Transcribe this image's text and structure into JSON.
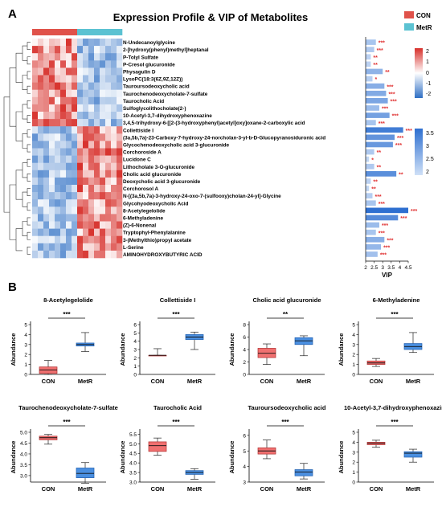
{
  "panel_a": {
    "label": "A",
    "title": "Expression Profile & VIP of Metabolites",
    "legend": {
      "groups": [
        {
          "name": "CON",
          "color": "#e0524a"
        },
        {
          "name": "MetR",
          "color": "#5bc2d2"
        }
      ]
    },
    "color_scale": {
      "ticks": [
        "2",
        "1",
        "0",
        "-1",
        "-2"
      ],
      "colors": [
        "#d7302b",
        "#ffffff",
        "#2e6fc4"
      ]
    },
    "vip_scale": {
      "ticks": [
        "3.5",
        "3",
        "2.5",
        "2"
      ]
    }
  },
  "panel_b": {
    "label": "B"
  },
  "chart_data": [
    {
      "type": "heatmap",
      "title": "Expression Profile & VIP of Metabolites",
      "columns": [
        "CON",
        "CON",
        "CON",
        "CON",
        "CON",
        "CON",
        "CON",
        "CON",
        "MetR",
        "MetR",
        "MetR",
        "MetR",
        "MetR",
        "MetR",
        "MetR",
        "MetR"
      ],
      "rows": [
        "N-Undecanoylglycine",
        "2-[hydroxy(phenyl)methyl]heptanal",
        "P-Tolyl Sulfate",
        "P-Cresol glucuronide",
        "Physagulin D",
        "LysoPC(18:3(6Z,9Z,12Z))",
        "Tauroursodeoxycholic acid",
        "Taurochenodeoxycholate-7-sulfate",
        "Taurocholic Acid",
        "Sulfoglycolithocholate(2-)",
        "10-Acetyl-3,7-dihydroxyphenoxazine",
        "3,4,5-trihydroxy-6-[[2-(3-hydroxyphenyl)acetyl]oxy]oxane-2-carboxylic acid",
        "Collettiside I",
        "(3a,5b,7a)-23-Carboxy-7-hydroxy-24-norcholan-3-yl-b-D-Glucopyranosiduronic acid",
        "Glycochenodeoxycholic acid 3-glucuronide",
        "Corchoroside A",
        "Lucidone C",
        "Lithocholate 3-O-glucuronide",
        "Cholic acid glucuronide",
        "Deoxycholic acid 3-glucuronide",
        "Corchorosol A",
        "N-[(3a,5b,7a)-3-hydroxy-24-oxo-7-(sulfooxy)cholan-24-yl]-Glycine",
        "Glycohyodeoxycholic Acid",
        "8-Acetylegelolide",
        "6-Methyladenine",
        "(Z)-6-Nonenal",
        "Tryptophyl-Phenylalanine",
        "3-(Methylthio)propyl acetate",
        "L-Serine",
        "AMINOHYDROXYBUTYRIC ACID"
      ],
      "vip": [
        2.6,
        2.5,
        2.3,
        2.3,
        3.0,
        2.4,
        3.1,
        3.2,
        3.3,
        2.8,
        3.4,
        2.6,
        4.2,
        3.7,
        3.6,
        2.5,
        2.2,
        2.5,
        3.8,
        2.3,
        2.2,
        2.4,
        2.6,
        4.5,
        3.9,
        2.8,
        2.6,
        3.1,
        2.9,
        2.7
      ],
      "significance": [
        "***",
        "***",
        "**",
        "**",
        "**",
        "*",
        "***",
        "***",
        "***",
        "***",
        "***",
        "***",
        "***",
        "***",
        "***",
        "**",
        "*",
        "**",
        "**",
        "**",
        "**",
        "***",
        "***",
        "***",
        "***",
        "***",
        "***",
        "***",
        "***",
        "***"
      ],
      "xlabel": "VIP",
      "vip_axis_ticks": [
        "2",
        "2.5",
        "3",
        "3.5",
        "4",
        "4.5"
      ],
      "vip_xlim": [
        2,
        4.5
      ],
      "color_range": [
        -2,
        2
      ]
    },
    {
      "type": "box",
      "title": "8-Acetylegelolide",
      "ylabel": "Abundance",
      "categories": [
        "CON",
        "MetR"
      ],
      "significance": "***",
      "yticks": [
        "0",
        "1",
        "2",
        "3",
        "4",
        "5"
      ],
      "ylim": [
        0,
        5
      ],
      "boxes": [
        {
          "min": 0,
          "q1": 0.1,
          "median": 0.45,
          "q3": 0.75,
          "max": 1.4
        },
        {
          "min": 2.3,
          "q1": 2.85,
          "median": 3.0,
          "q3": 3.15,
          "max": 4.2
        }
      ]
    },
    {
      "type": "box",
      "title": "Collettiside I",
      "ylabel": "Abundance",
      "categories": [
        "CON",
        "MetR"
      ],
      "significance": "***",
      "yticks": [
        "0",
        "1",
        "2",
        "3",
        "4",
        "5",
        "6"
      ],
      "ylim": [
        0,
        6
      ],
      "boxes": [
        {
          "min": 2.3,
          "q1": 2.3,
          "median": 2.3,
          "q3": 2.3,
          "max": 3.1
        },
        {
          "min": 3.0,
          "q1": 4.2,
          "median": 4.5,
          "q3": 4.8,
          "max": 5.1
        }
      ]
    },
    {
      "type": "box",
      "title": "Cholic acid glucuronide",
      "ylabel": "Abundance",
      "categories": [
        "CON",
        "MetR"
      ],
      "significance": "**",
      "yticks": [
        "0",
        "2",
        "4",
        "6",
        "8"
      ],
      "ylim": [
        0,
        8
      ],
      "boxes": [
        {
          "min": 1.6,
          "q1": 2.7,
          "median": 3.4,
          "q3": 4.2,
          "max": 4.9
        },
        {
          "min": 3.0,
          "q1": 4.8,
          "median": 5.4,
          "q3": 5.9,
          "max": 6.2
        }
      ]
    },
    {
      "type": "box",
      "title": "6-Methyladenine",
      "ylabel": "Abundance",
      "categories": [
        "CON",
        "MetR"
      ],
      "significance": "***",
      "yticks": [
        "0",
        "1",
        "2",
        "3",
        "4",
        "5"
      ],
      "ylim": [
        0,
        5
      ],
      "boxes": [
        {
          "min": 0.8,
          "q1": 1.0,
          "median": 1.15,
          "q3": 1.35,
          "max": 1.6
        },
        {
          "min": 2.2,
          "q1": 2.5,
          "median": 2.8,
          "q3": 3.1,
          "max": 4.2
        }
      ]
    },
    {
      "type": "box",
      "title": "Taurochenodeoxycholate-7-sulfate",
      "ylabel": "Abundance",
      "categories": [
        "CON",
        "MetR"
      ],
      "significance": "***",
      "yticks": [
        "3.0",
        "3.5",
        "4.0",
        "4.5",
        "5.0"
      ],
      "ylim": [
        2.7,
        5.0
      ],
      "boxes": [
        {
          "min": 4.45,
          "q1": 4.65,
          "median": 4.75,
          "q3": 4.82,
          "max": 4.9
        },
        {
          "min": 2.65,
          "q1": 2.9,
          "median": 3.1,
          "q3": 3.35,
          "max": 3.6
        }
      ]
    },
    {
      "type": "box",
      "title": "Taurocholic Acid",
      "ylabel": "Abundance",
      "categories": [
        "CON",
        "MetR"
      ],
      "significance": "***",
      "yticks": [
        "3.0",
        "3.5",
        "4.0",
        "4.5",
        "5.0",
        "5.5"
      ],
      "ylim": [
        3.0,
        5.6
      ],
      "boxes": [
        {
          "min": 4.4,
          "q1": 4.6,
          "median": 4.9,
          "q3": 5.1,
          "max": 5.3
        },
        {
          "min": 3.15,
          "q1": 3.4,
          "median": 3.5,
          "q3": 3.6,
          "max": 3.7
        }
      ]
    },
    {
      "type": "box",
      "title": "Tauroursodeoxycholic acid",
      "ylabel": "Abundance",
      "categories": [
        "CON",
        "MetR"
      ],
      "significance": "***",
      "yticks": [
        "3",
        "4",
        "5",
        "6"
      ],
      "ylim": [
        3,
        6.2
      ],
      "boxes": [
        {
          "min": 4.5,
          "q1": 4.8,
          "median": 5.0,
          "q3": 5.2,
          "max": 5.7
        },
        {
          "min": 3.2,
          "q1": 3.4,
          "median": 3.65,
          "q3": 3.8,
          "max": 4.2
        }
      ]
    },
    {
      "type": "box",
      "title": "10-Acetyl-3,7-dihydroxyphenoxazine",
      "ylabel": "Abundance",
      "categories": [
        "CON",
        "MetR"
      ],
      "significance": "***",
      "yticks": [
        "0",
        "1",
        "2",
        "3",
        "4",
        "5"
      ],
      "ylim": [
        0,
        5
      ],
      "boxes": [
        {
          "min": 3.5,
          "q1": 3.75,
          "median": 3.9,
          "q3": 4.0,
          "max": 4.2
        },
        {
          "min": 2.0,
          "q1": 2.5,
          "median": 2.9,
          "q3": 3.05,
          "max": 3.3
        }
      ]
    }
  ]
}
